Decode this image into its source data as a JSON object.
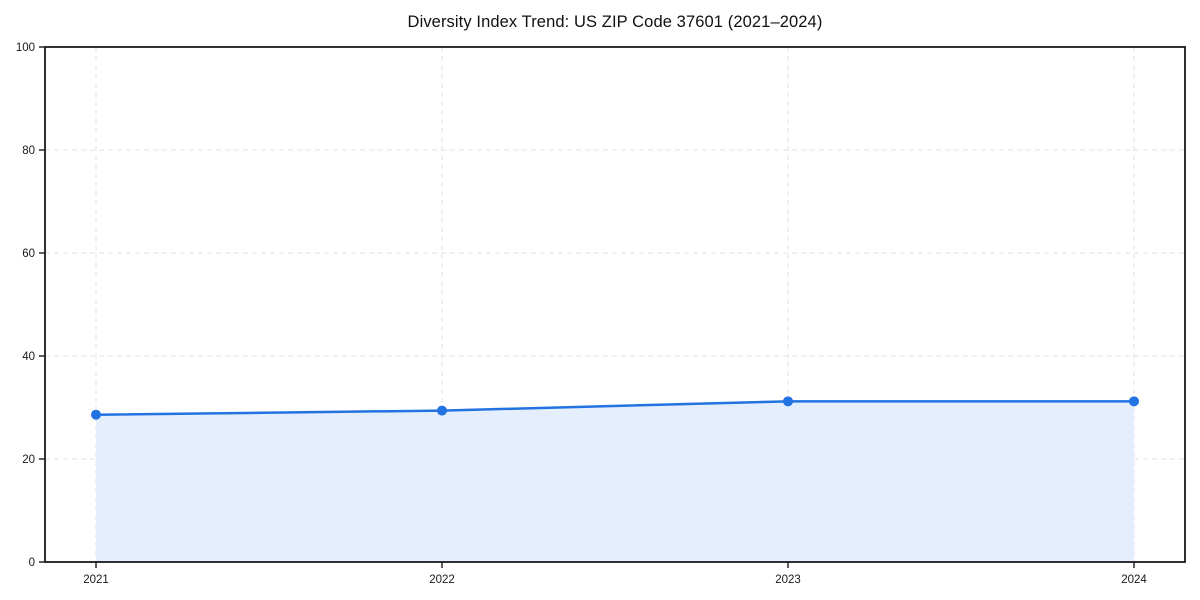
{
  "chart_data": {
    "type": "area",
    "title": "Diversity Index Trend: US ZIP Code 37601 (2021–2024)",
    "categories": [
      "2021",
      "2022",
      "2023",
      "2024"
    ],
    "series": [
      {
        "name": "Diversity Index",
        "values": [
          28.6,
          29.4,
          31.2,
          31.2
        ]
      }
    ],
    "xlabel": "",
    "ylabel": "",
    "ylim": [
      0,
      100
    ],
    "yticks": [
      0,
      20,
      40,
      60,
      80,
      100
    ],
    "grid": true,
    "grid_style": "dashed",
    "legend": false,
    "marker": "circle",
    "colors": {
      "line": "#2273e1",
      "marker": "#2273e1",
      "fill": "#e5eefc",
      "grid": "#e2e2e2",
      "axis": "#1a1a1a",
      "tick_label": "#1a1a1a",
      "background": "#ffffff"
    }
  }
}
